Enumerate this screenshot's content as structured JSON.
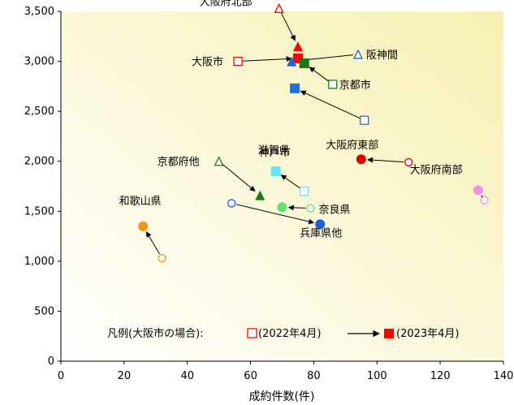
{
  "chart_data": {
    "type": "scatter",
    "xlabel": "成約件数(件)",
    "ylabel": "",
    "xlim": [
      0,
      140
    ],
    "ylim": [
      0,
      3500
    ],
    "x_ticks": [
      "0",
      "20",
      "40",
      "60",
      "80",
      "100",
      "120",
      "140"
    ],
    "y_ticks": [
      "0",
      "500",
      "1,000",
      "1,500",
      "2,000",
      "2,500",
      "3,000",
      "3,500"
    ],
    "grid": false,
    "background": "gradient from white (bottom-left) to light yellow (top-right)",
    "legend": {
      "prefix": "凡例(大阪市の場合):",
      "from_label": "(2022年4月)",
      "to_label": "(2023年4月)",
      "placement": "bottom"
    },
    "points": [
      {
        "name": "大阪府北部",
        "shape": "triangle",
        "color": "#ff0000",
        "x2022": 69,
        "y2022": 3530,
        "x2023": 75,
        "y2023": 3150
      },
      {
        "name": "大阪市",
        "shape": "square",
        "color": "#ff0000",
        "x2022": 56,
        "y2022": 3000,
        "x2023": 75,
        "y2023": 3030
      },
      {
        "name": "阪神間",
        "shape": "triangle",
        "color": "#1f5fd6",
        "x2022": 94,
        "y2022": 3070,
        "x2023": 73,
        "y2023": 3000
      },
      {
        "name": "京都市",
        "shape": "square",
        "color": "#1a7a1a",
        "x2022": 86,
        "y2022": 2770,
        "x2023": 77,
        "y2023": 2980
      },
      {
        "name": "神戸市",
        "shape": "square",
        "color": "#1e6fe0",
        "x2022": 96,
        "y2022": 2410,
        "x2023": 74,
        "y2023": 2730
      },
      {
        "name": "大阪府東部",
        "shape": "circle",
        "color": "#e00000",
        "x2022": 110,
        "y2022": 1990,
        "x2023": 95,
        "y2023": 2020
      },
      {
        "name": "大阪府南部",
        "shape": "circle",
        "color": "#f08ee8",
        "x2022": 134,
        "y2022": 1610,
        "x2023": 132,
        "y2023": 1710
      },
      {
        "name": "京都府他",
        "shape": "triangle",
        "color": "#1a7a1a",
        "x2022": 50,
        "y2022": 2000,
        "x2023": 63,
        "y2023": 1660
      },
      {
        "name": "滋賀県",
        "shape": "square",
        "color": "#66e6f0",
        "x2022": 77,
        "y2022": 1700,
        "x2023": 68,
        "y2023": 1900
      },
      {
        "name": "奈良県",
        "shape": "circle",
        "color": "#66e066",
        "x2022": 79,
        "y2022": 1530,
        "x2023": 70,
        "y2023": 1540
      },
      {
        "name": "兵庫県他",
        "shape": "circle",
        "color": "#1e5fd6",
        "x2022": 54,
        "y2022": 1580,
        "x2023": 82,
        "y2023": 1370
      },
      {
        "name": "和歌山県",
        "shape": "circle",
        "color": "#f0960f",
        "x2022": 32,
        "y2022": 1030,
        "x2023": 26,
        "y2023": 1350
      }
    ]
  }
}
